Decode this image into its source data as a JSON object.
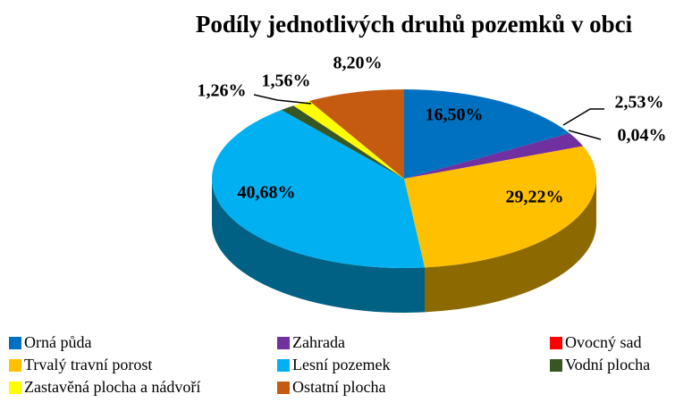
{
  "chart_data": {
    "type": "pie",
    "title": "Podíly jednotlivých druhů pozemků v obci",
    "categories": [
      "Orná půda",
      "Zahrada",
      "Ovocný sad",
      "Trvalý travní porost",
      "Lesní pozemek",
      "Vodní plocha",
      "Zastavěná plocha a nádvoří",
      "Ostatní plocha"
    ],
    "values": [
      16.5,
      2.53,
      0.04,
      29.22,
      40.68,
      1.26,
      1.56,
      8.2
    ],
    "value_labels": [
      "16,50%",
      "2,53%",
      "0,04%",
      "29,22%",
      "40,68%",
      "1,26%",
      "1,56%",
      "8,20%"
    ],
    "colors": [
      "#0070c0",
      "#7030a0",
      "#ff0000",
      "#ffc000",
      "#00b0f0",
      "#375623",
      "#ffff00",
      "#c55a11"
    ]
  }
}
